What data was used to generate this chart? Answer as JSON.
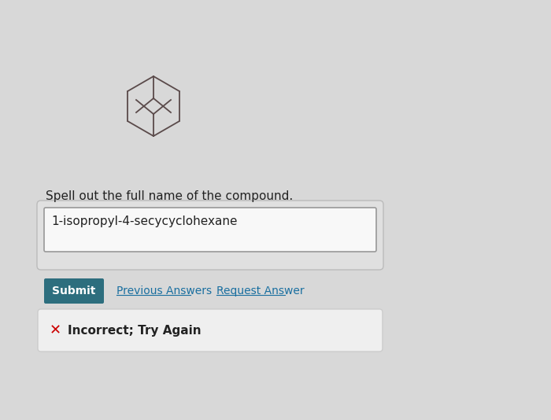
{
  "bg_color": "#d8d8d8",
  "question_text": "Spell out the full name of the compound.",
  "answer_text": "1-isopropyl-4-secycyclohexane",
  "submit_text": "Submit",
  "submit_bg": "#2d6e7e",
  "submit_text_color": "#ffffff",
  "prev_answers_text": "Previous Answers",
  "request_answer_text": "Request Answer",
  "link_color": "#1a6fa0",
  "incorrect_text": "Incorrect; Try Again",
  "incorrect_x_color": "#cc0000",
  "molecule_line_color": "#5a4a4a",
  "question_fontsize": 11,
  "answer_fontsize": 11,
  "submit_fontsize": 10,
  "link_fontsize": 10,
  "incorrect_fontsize": 11
}
